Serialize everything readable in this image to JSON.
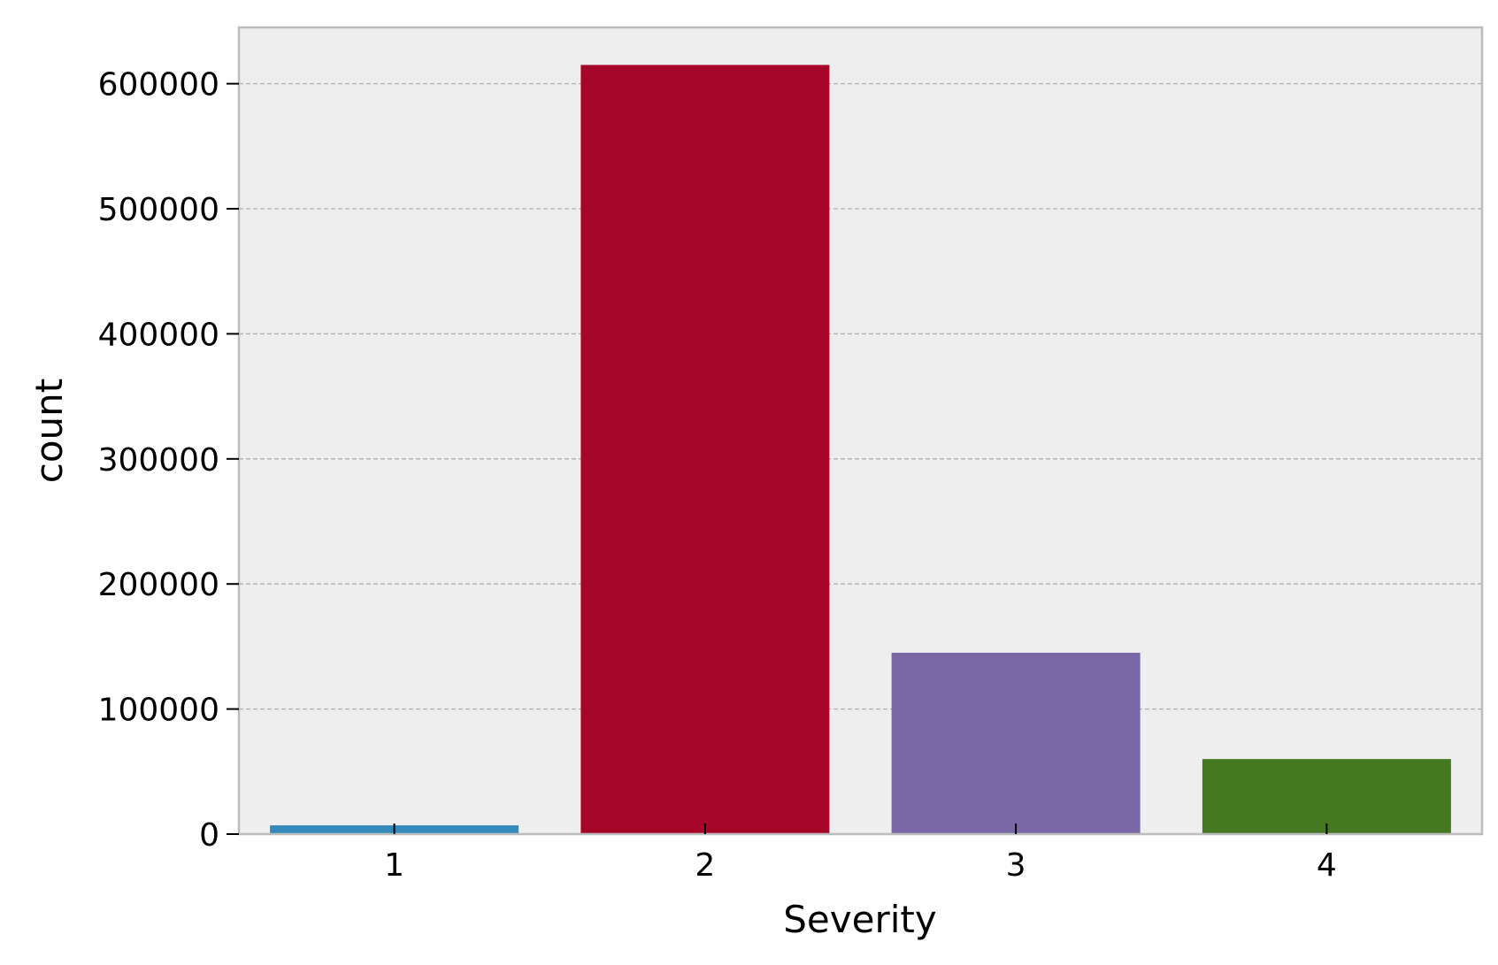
{
  "chart_data": {
    "type": "bar",
    "categories": [
      "1",
      "2",
      "3",
      "4"
    ],
    "values": [
      7000,
      615000,
      145000,
      60000
    ],
    "xlabel": "Severity",
    "ylabel": "count",
    "ylim": [
      0,
      645000
    ],
    "yticks": [
      0,
      100000,
      200000,
      300000,
      400000,
      500000,
      600000
    ],
    "ytick_labels": [
      "0",
      "100000",
      "200000",
      "300000",
      "400000",
      "500000",
      "600000"
    ],
    "grid": "y-dashed",
    "bar_colors": [
      "#348ABD",
      "#A60628",
      "#7A68A6",
      "#467821"
    ],
    "plot_background": "#EEEEEE",
    "grid_color": "#B0B0B0",
    "spine_color": "#BCBCBC"
  }
}
